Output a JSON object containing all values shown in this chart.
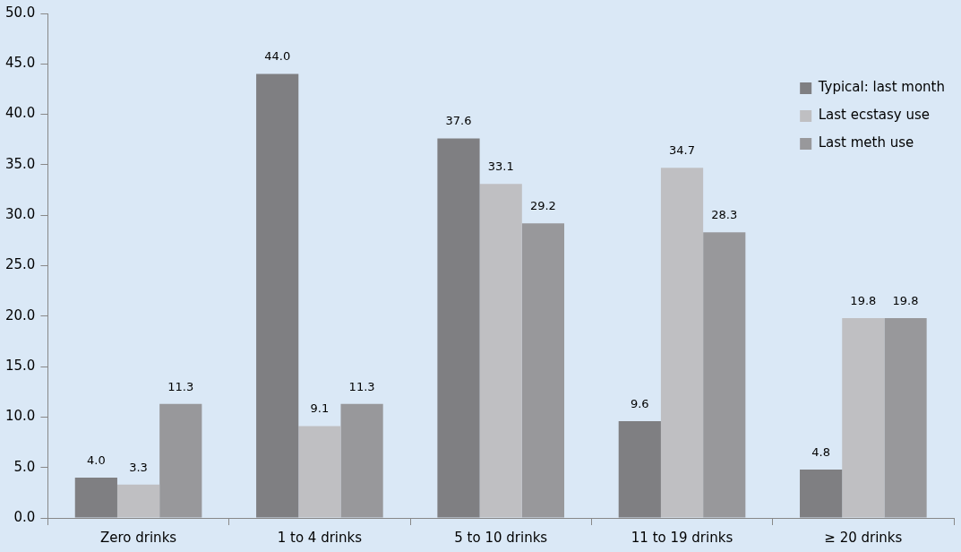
{
  "chart_data": {
    "type": "bar",
    "categories": [
      "Zero drinks",
      "1 to 4 drinks",
      "5 to 10 drinks",
      "11 to 19 drinks",
      "≥ 20 drinks"
    ],
    "series": [
      {
        "name": "Typical: last month",
        "color": "#7f7f82",
        "values": [
          4.0,
          44.0,
          37.6,
          9.6,
          4.8
        ],
        "value_labels": [
          "4.0",
          "44.0",
          "37.6",
          "9.6",
          "4.8"
        ]
      },
      {
        "name": "Last ecstasy use",
        "color": "#bfbfc2",
        "values": [
          3.3,
          9.1,
          33.1,
          34.7,
          19.8
        ],
        "value_labels": [
          "3.3",
          "9.1",
          "33.1",
          "34.7",
          "19.8"
        ]
      },
      {
        "name": "Last meth use",
        "color": "#98989b",
        "values": [
          11.3,
          11.3,
          29.2,
          28.3,
          19.8
        ],
        "value_labels": [
          "11.3",
          "11.3",
          "29.2",
          "28.3",
          "19.8"
        ]
      }
    ],
    "ylim": [
      0,
      50
    ],
    "yticks": [
      {
        "value": 0,
        "label": "0.0"
      },
      {
        "value": 5,
        "label": "5.0"
      },
      {
        "value": 10,
        "label": "10.0"
      },
      {
        "value": 15,
        "label": "15.0"
      },
      {
        "value": 20,
        "label": "20.0"
      },
      {
        "value": 25,
        "label": "25.0"
      },
      {
        "value": 30,
        "label": "30.0"
      },
      {
        "value": 35,
        "label": "35.0"
      },
      {
        "value": 40,
        "label": "40.0"
      },
      {
        "value": 45,
        "label": "45.0"
      },
      {
        "value": 50,
        "label": "50.0"
      }
    ],
    "grid": false,
    "legend": "top right"
  }
}
